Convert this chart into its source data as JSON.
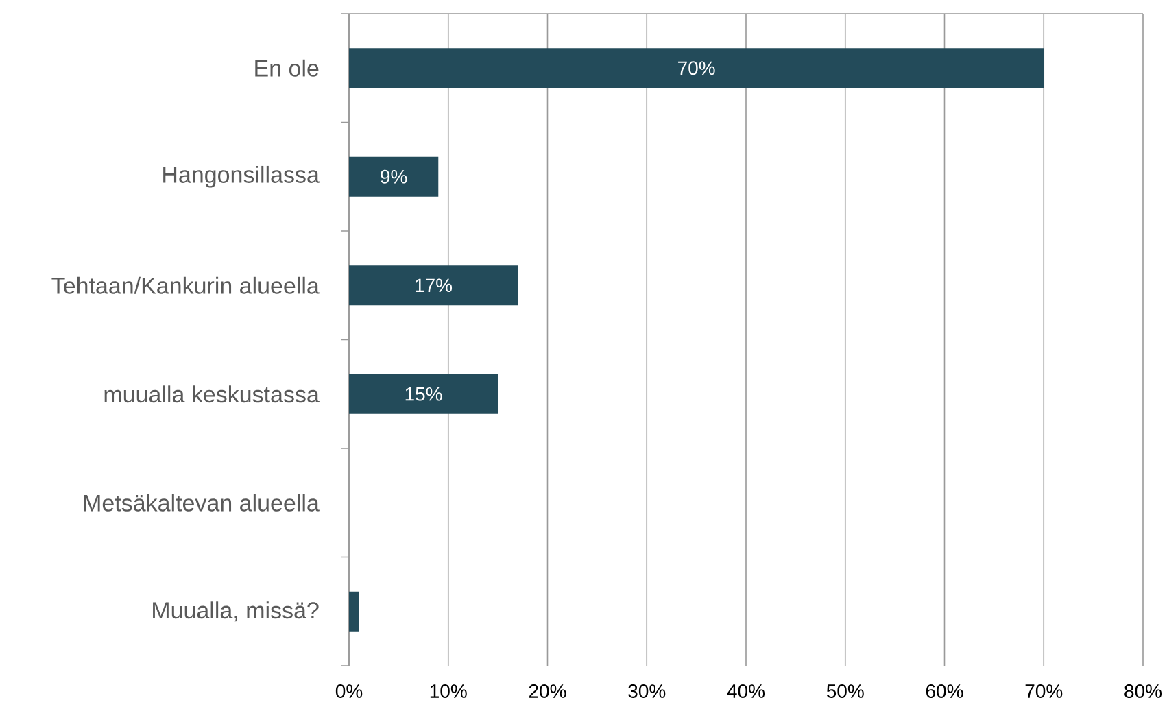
{
  "chart_data": {
    "type": "bar",
    "orientation": "horizontal",
    "categories": [
      "En ole",
      "Hangonsillassa",
      "Tehtaan/Kankurin alueella",
      "muualla keskustassa",
      "Metsäkaltevan alueella",
      "Muualla, missä?"
    ],
    "values": [
      70,
      9,
      17,
      15,
      0,
      1
    ],
    "value_labels": [
      "70%",
      "9%",
      "17%",
      "15%",
      null,
      null
    ],
    "color": "#234b5a",
    "xlim": [
      0,
      80
    ],
    "xticks": [
      {
        "value": 0,
        "label": "0%"
      },
      {
        "value": 10,
        "label": "10%"
      },
      {
        "value": 20,
        "label": "20%"
      },
      {
        "value": 30,
        "label": "30%"
      },
      {
        "value": 40,
        "label": "40%"
      },
      {
        "value": 50,
        "label": "50%"
      },
      {
        "value": 60,
        "label": "60%"
      },
      {
        "value": 70,
        "label": "70%"
      },
      {
        "value": 80,
        "label": "80%"
      }
    ],
    "grid": "x"
  }
}
